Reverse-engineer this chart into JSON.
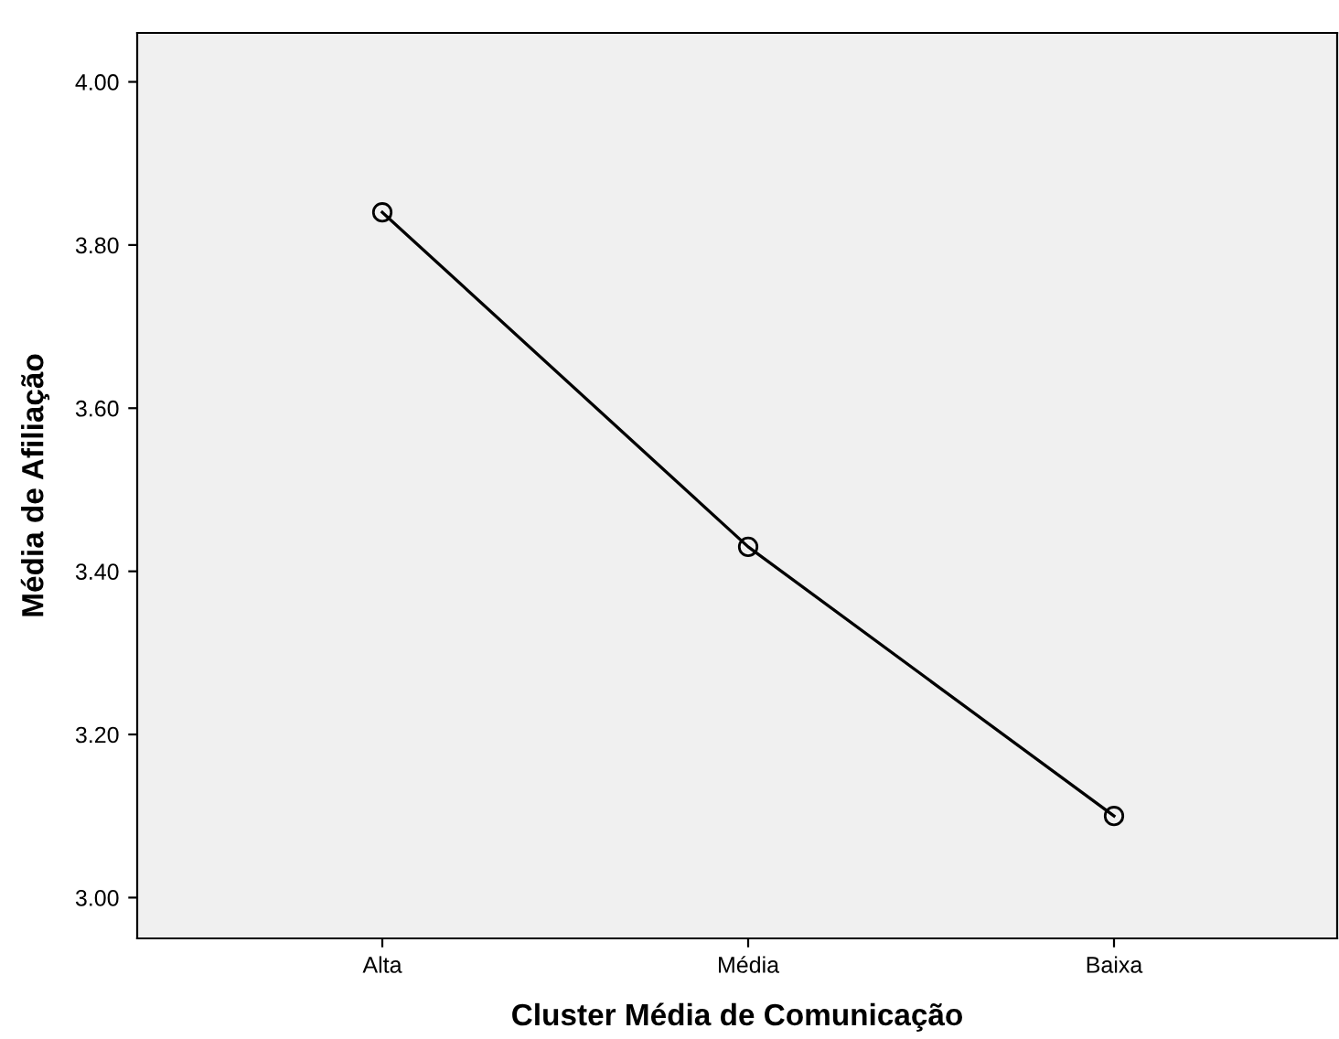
{
  "chart_data": {
    "type": "line",
    "xlabel": "Cluster Média de Comunicação",
    "ylabel": "Média de Afiliação",
    "categories": [
      "Alta",
      "Média",
      "Baixa"
    ],
    "series": [
      {
        "color": "#000000",
        "values": [
          3.84,
          3.43,
          3.1
        ]
      }
    ],
    "ylim": [
      2.95,
      4.06
    ],
    "yticks": [
      {
        "value": 3.0,
        "label": "3.00"
      },
      {
        "value": 3.2,
        "label": "3.20"
      },
      {
        "value": 3.4,
        "label": "3.40"
      },
      {
        "value": 3.6,
        "label": "3.60"
      },
      {
        "value": 3.8,
        "label": "3.80"
      },
      {
        "value": 4.0,
        "label": "4.00"
      }
    ],
    "marker": "circle",
    "line_style": "solid",
    "grid": false,
    "legend": false
  }
}
